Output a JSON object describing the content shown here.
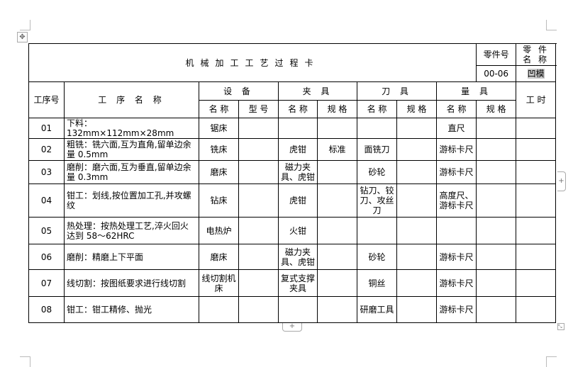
{
  "title": "机械加工工艺过程卡",
  "part_no_label": "零件号",
  "part_name_label": "零 件 名 称",
  "part_no": "00-06",
  "part_name": "凹模",
  "headers": {
    "step_no": "工序号",
    "step_name": "工 序 名 称",
    "equipment": "设 备",
    "fixture": "夹 具",
    "tool": "刀 具",
    "gauge": "量 具",
    "hours": "工 时",
    "name": "名 称",
    "model": "型 号",
    "spec": "规 格"
  },
  "rows": [
    {
      "no": "01",
      "proc": "下料：132mm×112mm×28mm",
      "equip": "锯床",
      "model": "",
      "fixture": "",
      "fixture_spec": "",
      "tool": "",
      "tool_spec": "",
      "gauge": "直尺",
      "gauge_spec": "",
      "hours": ""
    },
    {
      "no": "02",
      "proc": "粗铣：铣六面,互为直角,留单边余量 0.5mm",
      "equip": "铣床",
      "model": "",
      "fixture": "虎钳",
      "fixture_spec": "标准",
      "tool": "面铣刀",
      "tool_spec": "",
      "gauge": "游标卡尺",
      "gauge_spec": "",
      "hours": ""
    },
    {
      "no": "03",
      "proc": "磨削：磨六面,互为垂直,留单边余量 0.3mm",
      "equip": "磨床",
      "model": "",
      "fixture": "磁力夹具、虎钳",
      "fixture_spec": "",
      "tool": "砂轮",
      "tool_spec": "",
      "gauge": "游标卡尺",
      "gauge_spec": "",
      "hours": ""
    },
    {
      "no": "04",
      "proc": "钳工：划线,按位置加工孔,并攻螺纹",
      "equip": "钻床",
      "model": "",
      "fixture": "虎钳",
      "fixture_spec": "",
      "tool": "钻刀、铰刀、攻丝刀",
      "tool_spec": "",
      "gauge": "高度尺、游标卡尺",
      "gauge_spec": "",
      "hours": ""
    },
    {
      "no": "05",
      "proc": "热处理：按热处理工艺,淬火回火达到 58～62HRC",
      "equip": "电热炉",
      "model": "",
      "fixture": "火钳",
      "fixture_spec": "",
      "tool": "",
      "tool_spec": "",
      "gauge": "",
      "gauge_spec": "",
      "hours": ""
    },
    {
      "no": "06",
      "proc": "磨削：精磨上下平面",
      "equip": "磨床",
      "model": "",
      "fixture": "磁力夹具、虎钳",
      "fixture_spec": "",
      "tool": "砂轮",
      "tool_spec": "",
      "gauge": "游标卡尺",
      "gauge_spec": "",
      "hours": ""
    },
    {
      "no": "07",
      "proc": "线切割：按图纸要求进行线切割",
      "equip": "线切割机床",
      "model": "",
      "fixture": "复式支撑夹具",
      "fixture_spec": "",
      "tool": "铜丝",
      "tool_spec": "",
      "gauge": "游标卡尺",
      "gauge_spec": "",
      "hours": ""
    },
    {
      "no": "08",
      "proc": "钳工：钳工精修、抛光",
      "equip": "",
      "model": "",
      "fixture": "",
      "fixture_spec": "",
      "tool": "研磨工具",
      "tool_spec": "",
      "gauge": "游标卡尺",
      "gauge_spec": "",
      "hours": ""
    }
  ],
  "controls": {
    "move_icon": "✥",
    "add_icon": "+",
    "resize_icon": "⤡"
  }
}
